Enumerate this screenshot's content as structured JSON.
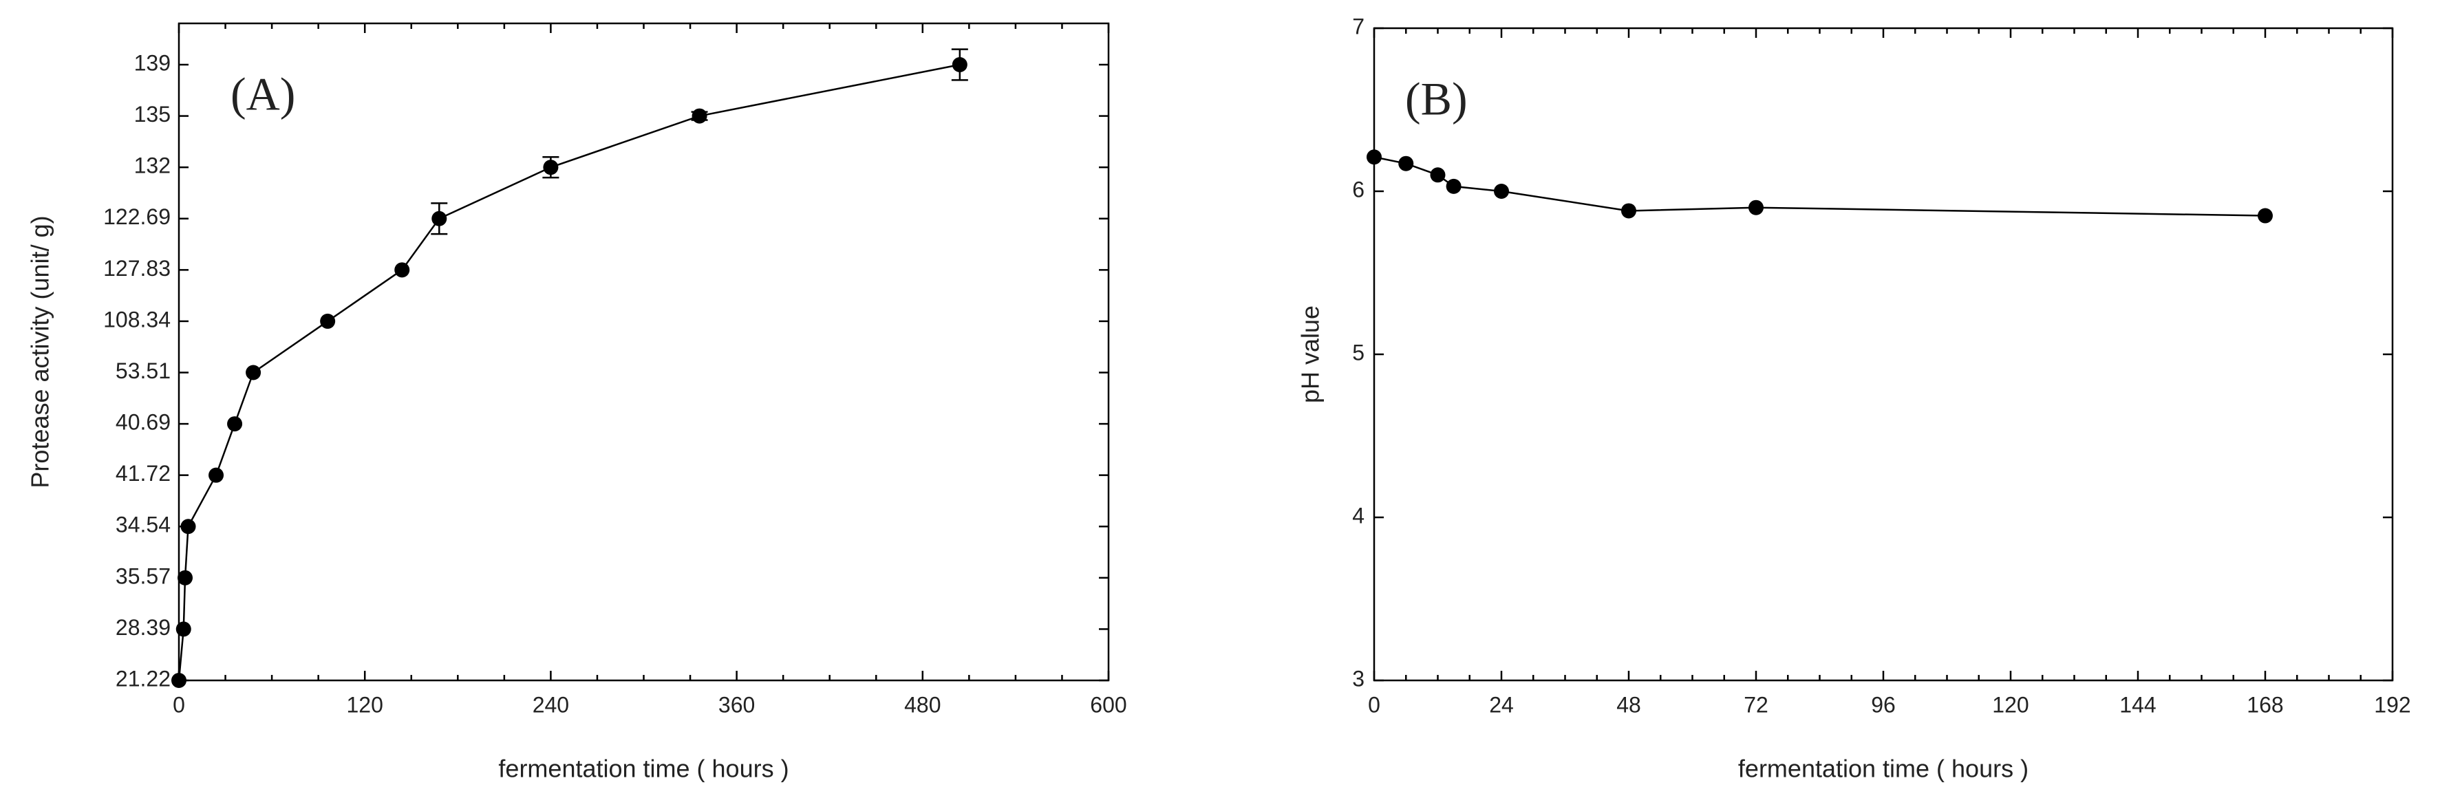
{
  "chart_data": [
    {
      "type": "line",
      "panel_label": "(A)",
      "x_label": "fermentation time ( hours )",
      "y_label": "Protease activity (unit/ g)",
      "xlim": [
        0,
        600
      ],
      "xticks": [
        0,
        120,
        240,
        360,
        480,
        600
      ],
      "ycategories": [
        "21.22",
        "28.39",
        "35.57",
        "34.54",
        "41.72",
        "40.69",
        "53.51",
        "108.34",
        "127.83",
        "122.69",
        "132",
        "135",
        "139"
      ],
      "x": [
        0,
        3,
        4,
        6,
        24,
        36,
        48,
        96,
        144,
        168,
        240,
        336,
        504
      ],
      "series": [
        {
          "color": "#000000",
          "values": [
            21.22,
            28.39,
            35.57,
            34.54,
            41.72,
            40.69,
            53.51,
            108.34,
            127.83,
            122.69,
            132,
            135,
            139
          ],
          "errors": [
            null,
            null,
            null,
            null,
            null,
            null,
            null,
            null,
            null,
            0.3,
            0.2,
            0.08,
            0.3
          ]
        }
      ]
    },
    {
      "type": "line",
      "panel_label": "(B)",
      "x_label": "fermentation time ( hours )",
      "y_label": "pH value",
      "xlim": [
        0,
        192
      ],
      "xticks": [
        0,
        24,
        48,
        72,
        96,
        120,
        144,
        168,
        192
      ],
      "ylim": [
        3,
        7
      ],
      "yticks": [
        3,
        4,
        5,
        6,
        7
      ],
      "x": [
        0,
        6,
        12,
        15,
        24,
        48,
        72,
        168
      ],
      "series": [
        {
          "color": "#000000",
          "values": [
            6.21,
            6.17,
            6.1,
            6.03,
            6.0,
            5.88,
            5.9,
            5.85
          ]
        }
      ]
    }
  ]
}
